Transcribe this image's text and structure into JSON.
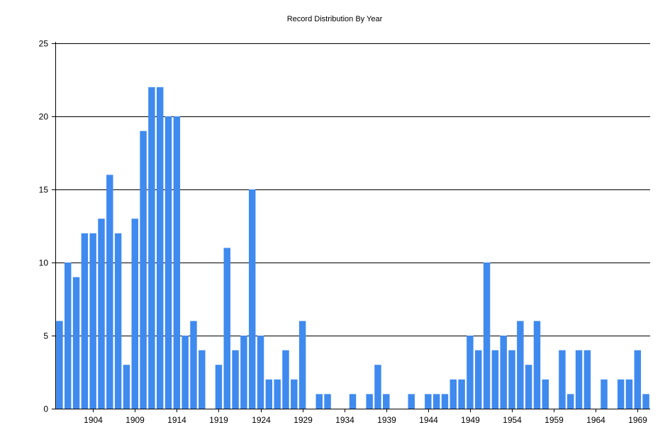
{
  "chart_data": {
    "type": "bar",
    "title": "Record Distribution By Year",
    "xlabel": "",
    "ylabel": "",
    "ylim": [
      0,
      25
    ],
    "yticks": [
      0,
      5,
      10,
      15,
      20,
      25
    ],
    "grid": true,
    "legend": "none",
    "bar_color": "#3F8AEE",
    "x": [
      1900,
      1901,
      1902,
      1903,
      1904,
      1905,
      1906,
      1907,
      1908,
      1909,
      1910,
      1911,
      1912,
      1913,
      1914,
      1915,
      1916,
      1917,
      1918,
      1919,
      1920,
      1921,
      1922,
      1923,
      1924,
      1925,
      1926,
      1927,
      1928,
      1929,
      1930,
      1931,
      1932,
      1933,
      1934,
      1935,
      1936,
      1937,
      1938,
      1939,
      1940,
      1941,
      1942,
      1943,
      1944,
      1945,
      1946,
      1947,
      1948,
      1949,
      1950,
      1951,
      1952,
      1953,
      1954,
      1955,
      1956,
      1957,
      1958,
      1959,
      1960,
      1961,
      1962,
      1963,
      1964,
      1965,
      1966,
      1967,
      1968,
      1969,
      1970
    ],
    "values": [
      6,
      10,
      9,
      12,
      12,
      13,
      16,
      12,
      3,
      13,
      19,
      22,
      22,
      20,
      20,
      5,
      6,
      4,
      0,
      3,
      11,
      4,
      5,
      15,
      5,
      2,
      2,
      4,
      2,
      6,
      0,
      1,
      1,
      0,
      0,
      1,
      0,
      1,
      3,
      1,
      0,
      0,
      1,
      0,
      1,
      1,
      1,
      2,
      2,
      5,
      4,
      10,
      4,
      5,
      4,
      6,
      3,
      6,
      2,
      0,
      4,
      1,
      4,
      4,
      0,
      2,
      0,
      2,
      2,
      4,
      1
    ],
    "xticks": [
      1904,
      1909,
      1914,
      1919,
      1924,
      1929,
      1934,
      1939,
      1944,
      1949,
      1954,
      1959,
      1964,
      1969
    ]
  }
}
